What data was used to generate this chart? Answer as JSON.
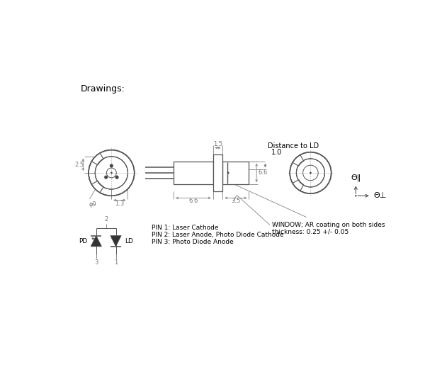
{
  "title": "Drawings:",
  "bg_color": "#ffffff",
  "line_color": "#555555",
  "dim_color": "#777777",
  "font_size_title": 9,
  "font_size_dim": 6,
  "font_size_label": 6.5,
  "annotations": {
    "dim_25": "2.5",
    "dim_13": "1.3",
    "dim_phi9": "φ9",
    "dim_66_left": "6.6",
    "dim_35": "3.5",
    "dim_15": "1.5",
    "dim_66_right": "6.6",
    "dist_ld": "Distance to LD",
    "dist_10": "1.0",
    "window_text1": "WINDOW; AR coating on both sides",
    "window_text2": "thickness: 0.25 +/- 0.05",
    "pin1": "PIN 1: Laser Cathode",
    "pin2": "PIN 2: Laser Anode, Photo Diode Cathode",
    "pin3": "PIN 3: Photo Diode Anode",
    "theta_par": "Θ‖",
    "theta_perp": "Θ⊥",
    "pd_label": "PD",
    "ld_label": "LD",
    "pin_num_2": "2",
    "pin_num_3": "3",
    "pin_num_1": "1"
  }
}
